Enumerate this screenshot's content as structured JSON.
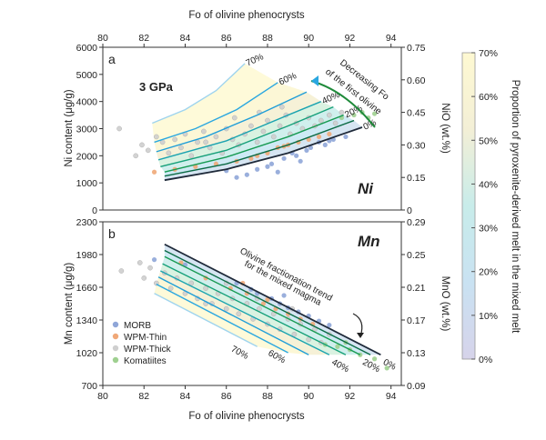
{
  "chart_data": [
    {
      "panel": "a",
      "type": "scatter",
      "element": "Ni",
      "annotation_pressure": "3 GPa",
      "annotation_arrow": "Decreasing Fo of the first olivine",
      "xlabel": "Fo of olivine phenocrysts",
      "ylabel": "Ni content (μg/g)",
      "y2label": "NiO (wt.%)",
      "xlim": [
        80,
        94.5
      ],
      "ylim": [
        0,
        6000
      ],
      "y2lim": [
        0,
        0.75
      ],
      "xticks": [
        "80",
        "82",
        "84",
        "86",
        "88",
        "90",
        "92",
        "94"
      ],
      "yticks": [
        "0",
        "1000",
        "2000",
        "3000",
        "4000",
        "5000",
        "6000"
      ],
      "y2ticks": [
        "0",
        "0.15",
        "0.30",
        "0.45",
        "0.60",
        "0.75"
      ],
      "model_curves": [
        {
          "label": "0%",
          "fraction": 0,
          "x": [
            83,
            86,
            89,
            92.6
          ],
          "y": [
            1100,
            1500,
            2100,
            3050
          ]
        },
        {
          "label": "10%",
          "fraction": 10,
          "x": [
            83,
            86,
            89,
            92.2
          ],
          "y": [
            1250,
            1700,
            2400,
            3300
          ]
        },
        {
          "label": "20%",
          "fraction": 20,
          "x": [
            83,
            86,
            89,
            91.7
          ],
          "y": [
            1400,
            1950,
            2700,
            3500
          ]
        },
        {
          "label": "30%",
          "fraction": 30,
          "x": [
            82.8,
            86,
            89,
            91.2
          ],
          "y": [
            1600,
            2200,
            3100,
            3800
          ]
        },
        {
          "label": "40%",
          "fraction": 40,
          "x": [
            82.7,
            86,
            89,
            90.6
          ],
          "y": [
            1850,
            2550,
            3500,
            4000
          ]
        },
        {
          "label": "50%",
          "fraction": 50,
          "x": [
            82.6,
            85,
            87.5,
            89.9
          ],
          "y": [
            2150,
            2700,
            3500,
            4350
          ]
        },
        {
          "label": "60%",
          "fraction": 60,
          "x": [
            82.5,
            84.5,
            86.5,
            88.5
          ],
          "y": [
            2500,
            3000,
            3700,
            4700
          ]
        },
        {
          "label": "70%",
          "fraction": 70,
          "x": [
            82.4,
            84,
            85.5,
            86.9
          ],
          "y": [
            3200,
            3700,
            4400,
            5400
          ]
        }
      ],
      "series": [
        {
          "name": "MORB",
          "color": "#8fa6d8",
          "points": [
            [
              86.5,
              1200
            ],
            [
              87.5,
              1500
            ],
            [
              88.2,
              1700
            ],
            [
              88.8,
              1900
            ],
            [
              89.2,
              2100
            ],
            [
              89.6,
              1800
            ],
            [
              90.1,
              2300
            ],
            [
              90.5,
              2500
            ],
            [
              91.2,
              2600
            ],
            [
              91.8,
              2700
            ],
            [
              88.5,
              1400
            ],
            [
              87,
              1300
            ],
            [
              89.9,
              2200
            ],
            [
              90.8,
              2400
            ],
            [
              86,
              1450
            ],
            [
              88,
              1600
            ],
            [
              89.4,
              2000
            ],
            [
              91,
              2550
            ]
          ]
        },
        {
          "name": "WPM-Thin",
          "color": "#f0a878",
          "points": [
            [
              82.5,
              1400
            ],
            [
              83.5,
              1500
            ],
            [
              84.5,
              1600
            ],
            [
              85.5,
              1700
            ],
            [
              86.5,
              1800
            ],
            [
              87.5,
              2000
            ],
            [
              88,
              2100
            ],
            [
              88.5,
              2300
            ],
            [
              89,
              2400
            ],
            [
              89.5,
              2500
            ],
            [
              90,
              2600
            ],
            [
              90.5,
              2700
            ],
            [
              91,
              2800
            ],
            [
              88.8,
              2350
            ],
            [
              87.2,
              1900
            ]
          ]
        },
        {
          "name": "WPM-Thick",
          "color": "#cfcfcf",
          "points": [
            [
              80.8,
              3000
            ],
            [
              81.6,
              2000
            ],
            [
              81.9,
              2400
            ],
            [
              82.2,
              2200
            ],
            [
              82.6,
              2700
            ],
            [
              82.9,
              2500
            ],
            [
              83.2,
              2100
            ],
            [
              83.5,
              2600
            ],
            [
              83.8,
              2300
            ],
            [
              84,
              2800
            ],
            [
              84.3,
              2000
            ],
            [
              84.6,
              2500
            ],
            [
              84.9,
              2900
            ],
            [
              85.2,
              2300
            ],
            [
              85.5,
              2700
            ],
            [
              85.8,
              2100
            ],
            [
              86,
              3000
            ],
            [
              86.3,
              2600
            ],
            [
              86.6,
              2400
            ],
            [
              86.9,
              2800
            ],
            [
              87.2,
              3100
            ],
            [
              87.5,
              2500
            ],
            [
              87.8,
              2900
            ],
            [
              88,
              3300
            ],
            [
              88.3,
              2700
            ],
            [
              88.6,
              3100
            ],
            [
              88.9,
              3500
            ],
            [
              89.1,
              2800
            ],
            [
              89.4,
              3200
            ],
            [
              89.7,
              3000
            ],
            [
              90,
              3400
            ],
            [
              90.3,
              3100
            ],
            [
              90.6,
              3300
            ],
            [
              91,
              3500
            ],
            [
              91.3,
              3200
            ],
            [
              91.6,
              3600
            ],
            [
              85,
              2500
            ],
            [
              86.4,
              3400
            ],
            [
              87.6,
              3600
            ],
            [
              88.7,
              3800
            ]
          ]
        },
        {
          "name": "Komatiites",
          "color": "#9fd090",
          "points": [
            [
              91.6,
              3400
            ],
            [
              92.2,
              3500
            ],
            [
              92.6,
              3600
            ],
            [
              93.2,
              3550
            ],
            [
              92.9,
              3400
            ]
          ]
        }
      ]
    },
    {
      "panel": "b",
      "type": "scatter",
      "element": "Mn",
      "annotation_trend": "Olivine fractionation trend for the mixed magma",
      "xlabel": "Fo of olivine phenocrysts",
      "ylabel": "Mn content (μg/g)",
      "y2label": "MnO (wt.%)",
      "xlim": [
        80,
        94.5
      ],
      "ylim": [
        700,
        2300
      ],
      "y2lim": [
        0.09,
        0.29
      ],
      "xticks": [
        "80",
        "82",
        "84",
        "86",
        "88",
        "90",
        "92",
        "94"
      ],
      "yticks": [
        "700",
        "1020",
        "1340",
        "1660",
        "1980",
        "2300"
      ],
      "y2ticks": [
        "0.09",
        "0.13",
        "0.17",
        "0.21",
        "0.25",
        "0.29"
      ],
      "model_lines": [
        {
          "label": "0%",
          "fraction": 0,
          "x": [
            83,
            93.5
          ],
          "y": [
            2080,
            1000
          ]
        },
        {
          "label": "10%",
          "fraction": 10,
          "x": [
            83,
            93
          ],
          "y": [
            2020,
            1000
          ]
        },
        {
          "label": "20%",
          "fraction": 20,
          "x": [
            83,
            92.5
          ],
          "y": [
            1960,
            1000
          ]
        },
        {
          "label": "30%",
          "fraction": 30,
          "x": [
            82.9,
            91.8
          ],
          "y": [
            1890,
            1000
          ]
        },
        {
          "label": "40%",
          "fraction": 40,
          "x": [
            82.8,
            91
          ],
          "y": [
            1820,
            1000
          ]
        },
        {
          "label": "50%",
          "fraction": 50,
          "x": [
            82.7,
            90
          ],
          "y": [
            1760,
            1000
          ]
        },
        {
          "label": "60%",
          "fraction": 60,
          "x": [
            82.6,
            89
          ],
          "y": [
            1690,
            1020
          ]
        },
        {
          "label": "70%",
          "fraction": 70,
          "x": [
            82.5,
            87.5
          ],
          "y": [
            1600,
            1080
          ]
        }
      ],
      "series": [
        {
          "name": "MORB",
          "color": "#8fa6d8",
          "points": [
            [
              82.5,
              1930
            ],
            [
              84,
              1880
            ],
            [
              86.5,
              1700
            ],
            [
              87.5,
              1600
            ],
            [
              88.2,
              1550
            ],
            [
              88.6,
              1500
            ],
            [
              89,
              1460
            ],
            [
              89.5,
              1420
            ],
            [
              90,
              1380
            ],
            [
              90.5,
              1330
            ],
            [
              91,
              1290
            ],
            [
              88.8,
              1580
            ],
            [
              87.2,
              1640
            ]
          ]
        },
        {
          "name": "WPM-Thin",
          "color": "#f0a878",
          "points": [
            [
              83.8,
              1900
            ],
            [
              85,
              1750
            ],
            [
              86.2,
              1650
            ],
            [
              87,
              1600
            ],
            [
              87.8,
              1500
            ],
            [
              88.4,
              1450
            ],
            [
              89,
              1400
            ],
            [
              89.6,
              1350
            ],
            [
              90.2,
              1300
            ],
            [
              88,
              1540
            ],
            [
              86.8,
              1700
            ]
          ]
        },
        {
          "name": "WPM-Thick",
          "color": "#cfcfcf",
          "points": [
            [
              80.9,
              1820
            ],
            [
              81.8,
              1900
            ],
            [
              82,
              1750
            ],
            [
              82.3,
              1850
            ],
            [
              82.6,
              1700
            ],
            [
              83,
              1800
            ],
            [
              83.3,
              1650
            ],
            [
              83.6,
              1750
            ],
            [
              84,
              1600
            ],
            [
              84.3,
              1700
            ],
            [
              84.6,
              1550
            ],
            [
              85,
              1650
            ],
            [
              85.3,
              1500
            ],
            [
              85.6,
              1600
            ],
            [
              86,
              1450
            ],
            [
              86.3,
              1550
            ],
            [
              86.6,
              1400
            ],
            [
              87,
              1500
            ],
            [
              87.3,
              1350
            ],
            [
              87.6,
              1450
            ],
            [
              88,
              1300
            ],
            [
              88.3,
              1400
            ],
            [
              88.6,
              1250
            ],
            [
              89,
              1350
            ],
            [
              89.3,
              1200
            ],
            [
              89.6,
              1300
            ],
            [
              90,
              1150
            ],
            [
              90.3,
              1250
            ],
            [
              90.6,
              1120
            ],
            [
              91,
              1200
            ],
            [
              87.5,
              1550
            ],
            [
              86,
              1700
            ],
            [
              85,
              1500
            ],
            [
              89.2,
              1450
            ]
          ]
        },
        {
          "name": "Komatiites",
          "color": "#9fd090",
          "points": [
            [
              90.8,
              1100
            ],
            [
              91.4,
              1080
            ],
            [
              92,
              1050
            ],
            [
              92.5,
              1000
            ],
            [
              93.2,
              960
            ],
            [
              93.8,
              870
            ],
            [
              91.8,
              1120
            ]
          ]
        }
      ]
    }
  ],
  "legend": {
    "placement": "lower-left of panel b",
    "items": [
      {
        "label": "MORB",
        "color": "#8fa6d8"
      },
      {
        "label": "WPM-Thin",
        "color": "#f0a878"
      },
      {
        "label": "WPM-Thick",
        "color": "#cfcfcf"
      },
      {
        "label": "Komatiites",
        "color": "#9fd090"
      }
    ]
  },
  "colorbar": {
    "title": "Proportion of pyroxenite-derived melt in the mixed melt",
    "ticks": [
      "0%",
      "10%",
      "20%",
      "30%",
      "40%",
      "50%",
      "60%",
      "70%"
    ],
    "range": [
      0,
      70
    ],
    "colors": [
      "#d6d3ea",
      "#cfe0f0",
      "#c6e6f2",
      "#c8ecea",
      "#d4f0dc",
      "#f5efd0",
      "#fcf6cf",
      "#fef9d2"
    ]
  },
  "line_colors": {
    "0": "#1f2a3a",
    "10": "#0b6b45",
    "20": "#179a52",
    "30": "#16a07a",
    "40": "#1aa3b0",
    "50": "#1f9ed8",
    "60": "#2aa7e0",
    "70": "#9fd4ee"
  }
}
